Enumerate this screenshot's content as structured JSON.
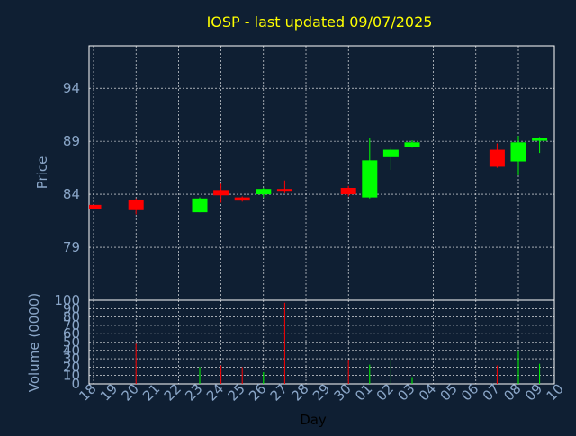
{
  "chart_data": [
    {
      "type": "candlestick",
      "title": "IOSP - last updated 09/07/2025",
      "ylabel": "Price",
      "yticks": [
        79,
        84,
        89,
        94
      ],
      "ylim": [
        74,
        98
      ],
      "grid": true,
      "colors": {
        "up": "#00ff00",
        "down": "#ff0000",
        "grid": "#ffffff",
        "axis": "#8aa6c8",
        "title": "#ffff00",
        "background": "#0f1f33"
      },
      "series": [
        {
          "day": "18",
          "open": 83.0,
          "high": 83.0,
          "low": 82.6,
          "close": 82.6
        },
        {
          "day": "20",
          "open": 83.5,
          "high": 83.6,
          "low": 82.1,
          "close": 82.5
        },
        {
          "day": "23",
          "open": 82.3,
          "high": 83.7,
          "low": 82.3,
          "close": 83.6
        },
        {
          "day": "24",
          "open": 84.4,
          "high": 85.0,
          "low": 83.2,
          "close": 83.9
        },
        {
          "day": "25",
          "open": 83.7,
          "high": 83.8,
          "low": 83.3,
          "close": 83.4
        },
        {
          "day": "26",
          "open": 84.0,
          "high": 84.6,
          "low": 83.7,
          "close": 84.5
        },
        {
          "day": "27",
          "open": 84.5,
          "high": 85.3,
          "low": 84.1,
          "close": 84.3
        },
        {
          "day": "30",
          "open": 84.6,
          "high": 84.8,
          "low": 83.8,
          "close": 84.0
        },
        {
          "day": "01",
          "open": 83.7,
          "high": 89.3,
          "low": 83.6,
          "close": 87.2
        },
        {
          "day": "02",
          "open": 87.5,
          "high": 88.4,
          "low": 86.3,
          "close": 88.2
        },
        {
          "day": "03",
          "open": 88.5,
          "high": 89.1,
          "low": 88.4,
          "close": 88.9
        },
        {
          "day": "07",
          "open": 88.2,
          "high": 88.8,
          "low": 86.5,
          "close": 86.6
        },
        {
          "day": "08",
          "open": 87.1,
          "high": 89.5,
          "low": 85.8,
          "close": 88.9
        },
        {
          "day": "09",
          "open": 89.1,
          "high": 89.4,
          "low": 87.9,
          "close": 89.3
        }
      ]
    },
    {
      "type": "bar",
      "ylabel": "Volume (0000)",
      "xlabel": "Day",
      "ylim": [
        0,
        100
      ],
      "yticks": [
        0,
        10,
        20,
        30,
        40,
        50,
        60,
        70,
        80,
        90,
        100
      ],
      "categories": [
        "18",
        "19",
        "20",
        "21",
        "22",
        "23",
        "24",
        "25",
        "26",
        "27",
        "28",
        "29",
        "30",
        "01",
        "02",
        "03",
        "04",
        "05",
        "06",
        "07",
        "08",
        "09",
        "10"
      ],
      "series": [
        {
          "day": "18",
          "value": 0,
          "color": "#ff0000"
        },
        {
          "day": "20",
          "value": 48,
          "color": "#ff0000"
        },
        {
          "day": "23",
          "value": 20,
          "color": "#00ff00"
        },
        {
          "day": "24",
          "value": 22,
          "color": "#ff0000"
        },
        {
          "day": "25",
          "value": 20,
          "color": "#ff0000"
        },
        {
          "day": "26",
          "value": 14,
          "color": "#00ff00"
        },
        {
          "day": "27",
          "value": 97,
          "color": "#ff0000"
        },
        {
          "day": "30",
          "value": 29,
          "color": "#ff0000"
        },
        {
          "day": "01",
          "value": 23,
          "color": "#00ff00"
        },
        {
          "day": "02",
          "value": 28,
          "color": "#00ff00"
        },
        {
          "day": "03",
          "value": 8,
          "color": "#00ff00"
        },
        {
          "day": "07",
          "value": 22,
          "color": "#ff0000"
        },
        {
          "day": "08",
          "value": 40,
          "color": "#00ff00"
        },
        {
          "day": "09",
          "value": 24,
          "color": "#00ff00"
        }
      ]
    }
  ]
}
